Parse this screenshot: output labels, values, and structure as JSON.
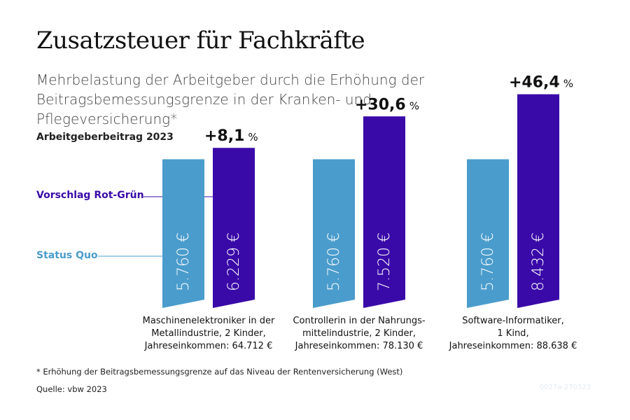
{
  "title": "Zusatzsteuer für Fachkräfte",
  "subtitle": "Mehrbelastung der Arbeitgeber durch die Erhöhung der Beitragsbemessungsgrenze in der Kranken- und Pflegeversicherung*",
  "section_label": "Arbeitgeberbeitrag 2023",
  "legend": {
    "proposal": "Vorschlag Rot-Grün",
    "status_quo": "Status Quo"
  },
  "colors": {
    "status_quo": "#4a9ccc",
    "proposal": "#3a0aa8",
    "proposal_text": "#3a0aa8",
    "status_quo_text": "#4a9ccc"
  },
  "footnote": "* Erhöhung der Beitragsbemessungsgrenze auf das Niveau der Rentenversicherung (West)",
  "source": "Quelle: vbw 2023",
  "code": "0027a-270323",
  "chart_data": {
    "type": "bar",
    "title": "Arbeitgeberbeitrag 2023",
    "ylim": [
      0,
      9000
    ],
    "unit": "€",
    "categories": [
      {
        "lines": [
          "Maschinenelektroniker in der",
          "Metallindustrie, 2 Kinder,",
          "Jahreseinkommen: 64.712 €"
        ]
      },
      {
        "lines": [
          "Controllerin in der Nahrungs-",
          "mittelindustrie, 2 Kinder,",
          "Jahreseinkommen: 78.130 €"
        ]
      },
      {
        "lines": [
          "Software-Informatiker,",
          "1 Kind,",
          "Jahreseinkommen: 88.638 €"
        ]
      }
    ],
    "series": [
      {
        "name": "Status Quo",
        "values": [
          5760,
          5760,
          5760
        ],
        "labels": [
          "5.760 €",
          "5.760 €",
          "5.760 €"
        ]
      },
      {
        "name": "Vorschlag Rot-Grün",
        "values": [
          6229,
          7520,
          8432
        ],
        "labels": [
          "6.229 €",
          "7.520 €",
          "8.432 €"
        ]
      }
    ],
    "increase": {
      "values": [
        8.1,
        30.6,
        46.4
      ],
      "labels": [
        "+8,1",
        "+30,6",
        "+46,4"
      ],
      "unit": "%"
    }
  }
}
